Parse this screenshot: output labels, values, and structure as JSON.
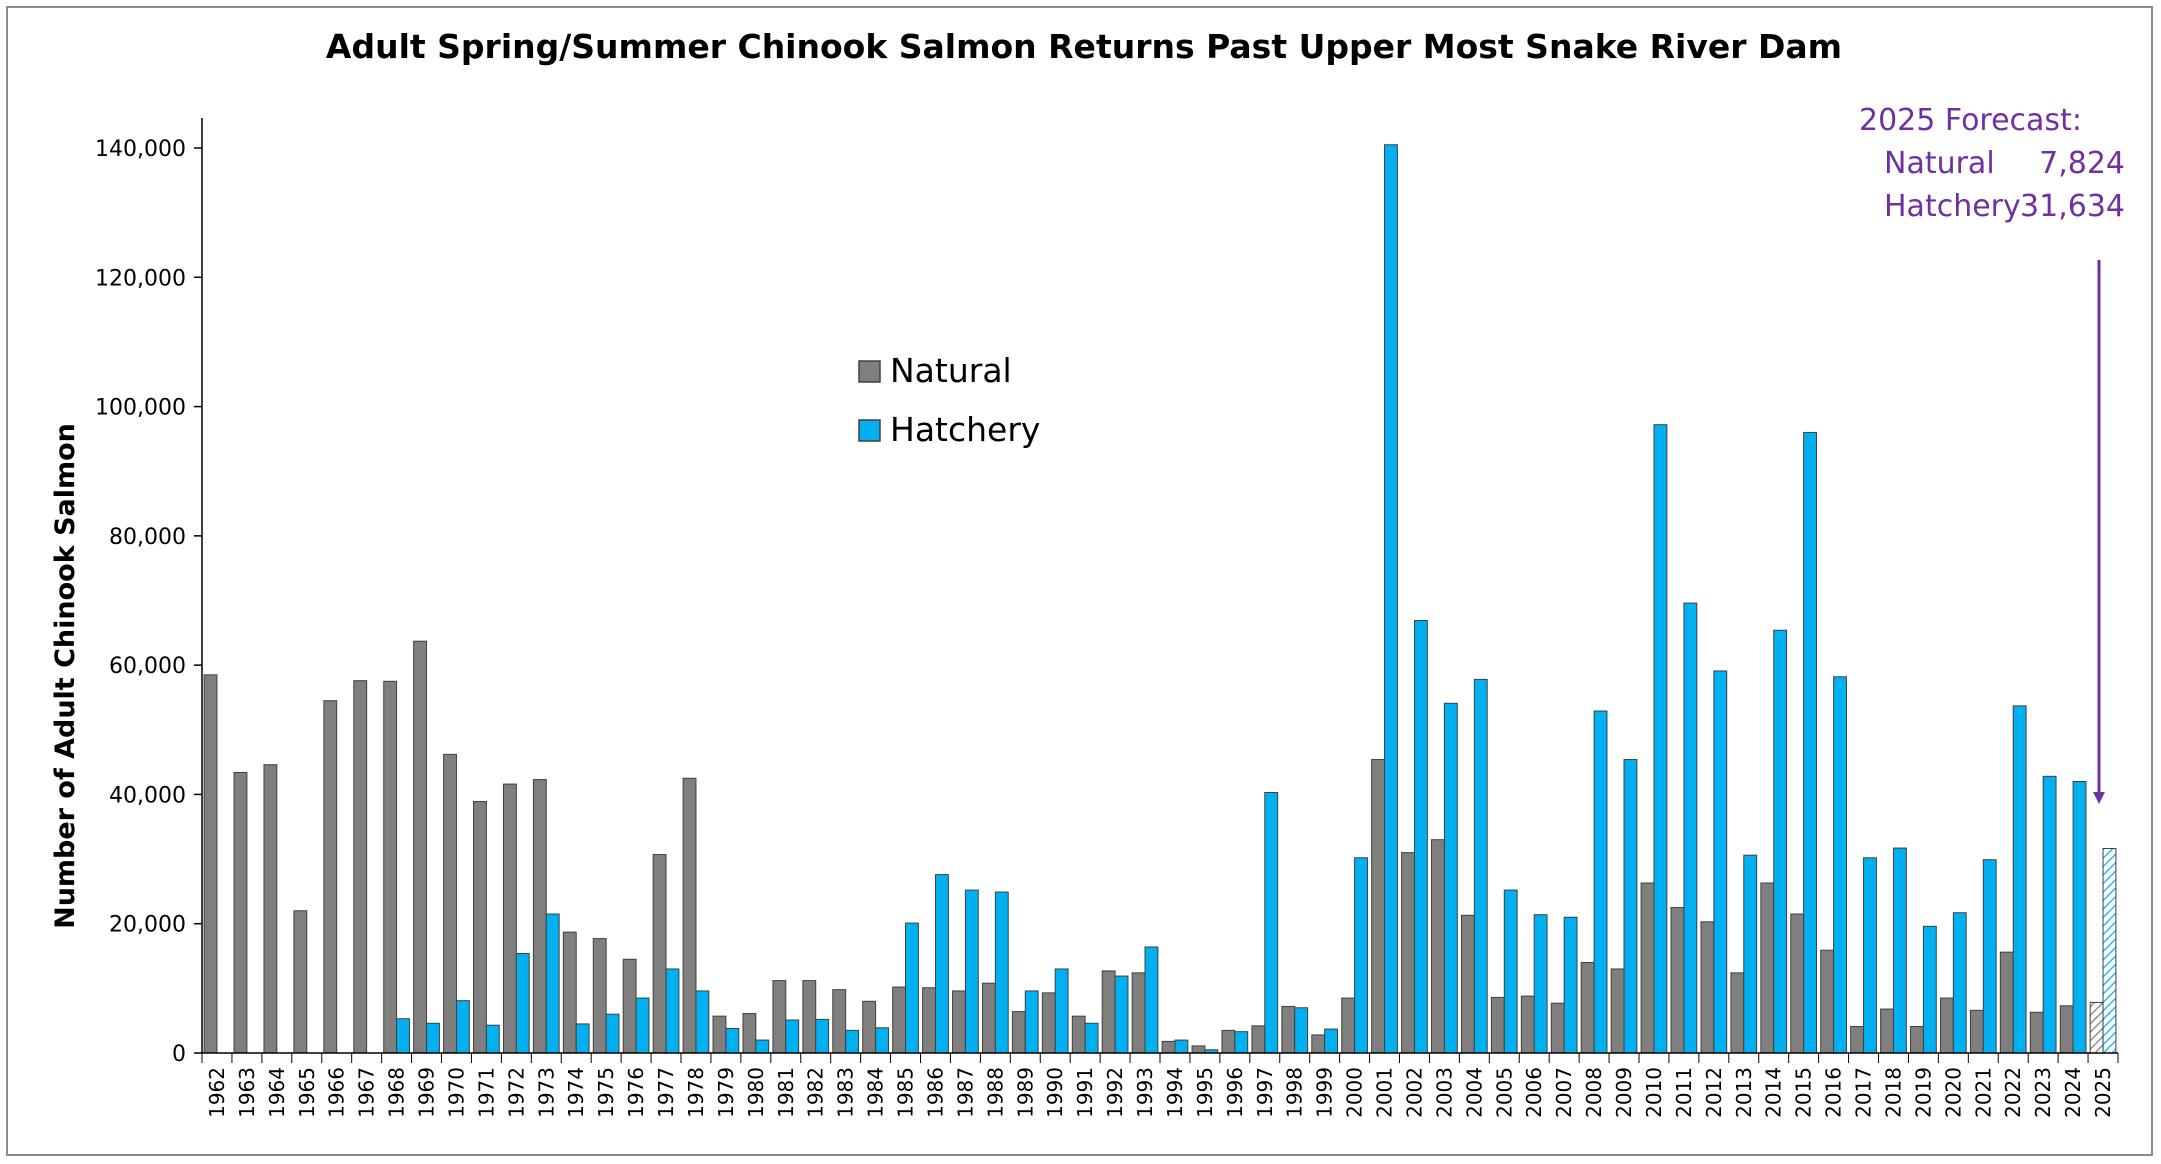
{
  "colors": {
    "natural": "#7f7f7f",
    "hatchery": "#00b0f0",
    "forecast_text": "#7030a0",
    "axis": "#000000",
    "frame": "#8c8c8c"
  },
  "chart_data": {
    "type": "bar",
    "title": "Adult Spring/Summer Chinook Salmon Returns Past Upper Most Snake River Dam",
    "xlabel": "",
    "ylabel": "Number of Adult Chinook Salmon",
    "ylim": [
      0,
      140000
    ],
    "yticks": [
      0,
      20000,
      40000,
      60000,
      80000,
      100000,
      120000,
      140000
    ],
    "ytick_labels": [
      "0",
      "20,000",
      "40,000",
      "60,000",
      "80,000",
      "100,000",
      "120,000",
      "140,000"
    ],
    "grid": false,
    "legend_position": "upper-center",
    "categories": [
      "1962",
      "1963",
      "1964",
      "1965",
      "1966",
      "1967",
      "1968",
      "1969",
      "1970",
      "1971",
      "1972",
      "1973",
      "1974",
      "1975",
      "1976",
      "1977",
      "1978",
      "1979",
      "1980",
      "1981",
      "1982",
      "1983",
      "1984",
      "1985",
      "1986",
      "1987",
      "1988",
      "1989",
      "1990",
      "1991",
      "1992",
      "1993",
      "1994",
      "1995",
      "1996",
      "1997",
      "1998",
      "1999",
      "2000",
      "2001",
      "2002",
      "2003",
      "2004",
      "2005",
      "2006",
      "2007",
      "2008",
      "2009",
      "2010",
      "2011",
      "2012",
      "2013",
      "2014",
      "2015",
      "2016",
      "2017",
      "2018",
      "2019",
      "2020",
      "2021",
      "2022",
      "2023",
      "2024",
      "2025"
    ],
    "series": [
      {
        "name": "Natural",
        "color": "#7f7f7f",
        "values": [
          58500,
          43400,
          44600,
          22000,
          54500,
          57600,
          57500,
          63700,
          46200,
          38900,
          41600,
          42300,
          18700,
          17700,
          14500,
          30700,
          42500,
          5700,
          6100,
          11200,
          11200,
          9800,
          8000,
          10200,
          10100,
          9600,
          10800,
          6400,
          9300,
          5700,
          12700,
          12400,
          1800,
          1100,
          3500,
          4200,
          7200,
          2800,
          8500,
          45400,
          31000,
          33000,
          21300,
          8600,
          8800,
          7700,
          14000,
          13000,
          26300,
          22500,
          20300,
          12400,
          26300,
          21500,
          15900,
          4100,
          6800,
          4100,
          8500,
          6600,
          15600,
          6300,
          7300,
          7824
        ]
      },
      {
        "name": "Hatchery",
        "color": "#00b0f0",
        "values": [
          0,
          0,
          0,
          0,
          0,
          0,
          5300,
          4600,
          8100,
          4300,
          15400,
          21500,
          4500,
          6000,
          8500,
          13000,
          9600,
          3800,
          2000,
          5100,
          5200,
          3500,
          3900,
          20100,
          27600,
          25200,
          24900,
          9600,
          13000,
          4600,
          11900,
          16400,
          2000,
          500,
          3300,
          40300,
          7000,
          3700,
          30200,
          140500,
          66900,
          54100,
          57800,
          25200,
          21400,
          21000,
          52900,
          45400,
          97200,
          69600,
          59100,
          30600,
          65400,
          96000,
          58200,
          30200,
          31700,
          19600,
          21700,
          29900,
          53700,
          42800,
          42000,
          31634
        ]
      }
    ],
    "forecast_year": "2025",
    "annotation": {
      "title": "2025 Forecast:",
      "natural_label": "Natural",
      "natural_value": "7,824",
      "hatchery_label": "Hatchery",
      "hatchery_value": "31,634"
    }
  }
}
